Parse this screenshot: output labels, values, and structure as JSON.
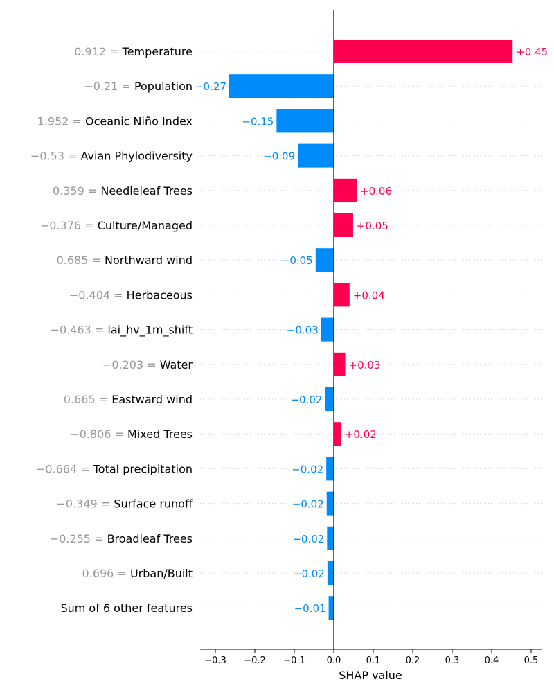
{
  "chart_data": {
    "type": "bar",
    "subtype": "shap-waterfall-bar",
    "xlabel": "SHAP value",
    "ylabel": "",
    "xlim": [
      -0.34,
      0.53
    ],
    "xticks": [
      -0.3,
      -0.2,
      -0.1,
      0.0,
      0.1,
      0.2,
      0.3,
      0.4,
      0.5
    ],
    "xtick_labels": [
      "−0.3",
      "−0.2",
      "−0.1",
      "0.0",
      "0.1",
      "0.2",
      "0.3",
      "0.4",
      "0.5"
    ],
    "grid": false,
    "colors": {
      "positive": "#ff0051",
      "negative": "#008bfb",
      "feature_value": "#999999",
      "feature_name": "#000000",
      "axis": "#000000",
      "row_guide": "#cccccc"
    },
    "rows": [
      {
        "value_text": "0.912 = ",
        "feature": "Temperature",
        "shap": 0.453,
        "label": "+0.45"
      },
      {
        "value_text": "−0.21 = ",
        "feature": "Population",
        "shap": -0.265,
        "label": "−0.27"
      },
      {
        "value_text": "1.952 = ",
        "feature": "Oceanic Niño Index",
        "shap": -0.145,
        "label": "−0.15"
      },
      {
        "value_text": "−0.53 = ",
        "feature": "Avian Phylodiversity",
        "shap": -0.091,
        "label": "−0.09"
      },
      {
        "value_text": "0.359 = ",
        "feature": "Needleleaf Trees",
        "shap": 0.058,
        "label": "+0.06"
      },
      {
        "value_text": "−0.376 = ",
        "feature": "Culture/Managed",
        "shap": 0.049,
        "label": "+0.05"
      },
      {
        "value_text": "0.685 = ",
        "feature": "Northward wind",
        "shap": -0.046,
        "label": "−0.05"
      },
      {
        "value_text": "−0.404 = ",
        "feature": "Herbaceous",
        "shap": 0.04,
        "label": "+0.04"
      },
      {
        "value_text": "−0.463 = ",
        "feature": "lai_hv_1m_shift",
        "shap": -0.032,
        "label": "−0.03"
      },
      {
        "value_text": "−0.203 = ",
        "feature": "Water",
        "shap": 0.029,
        "label": "+0.03"
      },
      {
        "value_text": "0.665 = ",
        "feature": "Eastward wind",
        "shap": -0.022,
        "label": "−0.02"
      },
      {
        "value_text": "−0.806 = ",
        "feature": "Mixed Trees",
        "shap": 0.019,
        "label": "+0.02"
      },
      {
        "value_text": "−0.664 = ",
        "feature": "Total precipitation",
        "shap": -0.019,
        "label": "−0.02"
      },
      {
        "value_text": "−0.349 = ",
        "feature": "Surface runoff",
        "shap": -0.018,
        "label": "−0.02"
      },
      {
        "value_text": "−0.255 = ",
        "feature": "Broadleaf Trees",
        "shap": -0.017,
        "label": "−0.02"
      },
      {
        "value_text": "0.696 = ",
        "feature": "Urban/Built",
        "shap": -0.016,
        "label": "−0.02"
      },
      {
        "value_text": "",
        "feature": "Sum of 6 other features",
        "shap": -0.013,
        "label": "−0.01"
      }
    ]
  }
}
